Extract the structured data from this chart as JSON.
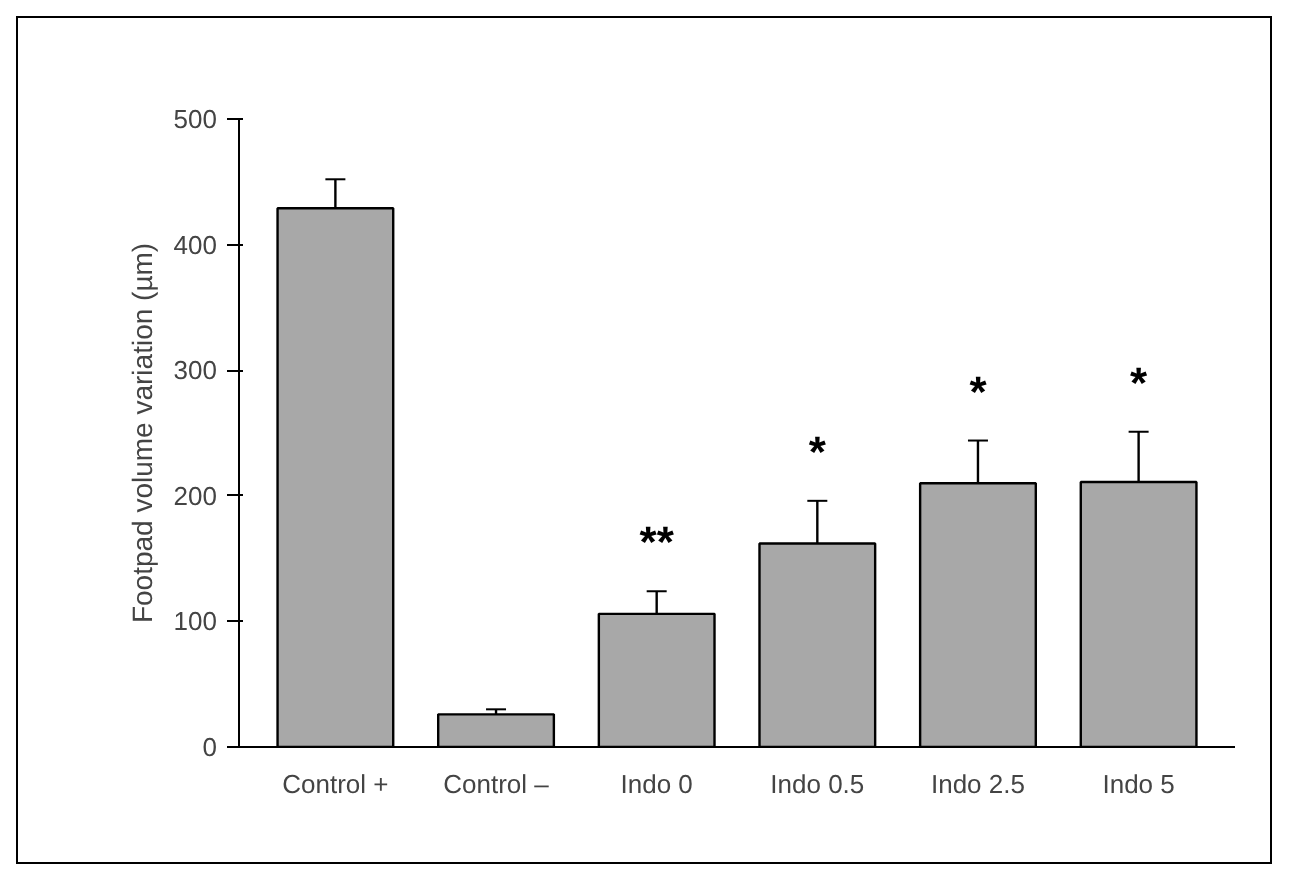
{
  "chart_data": {
    "type": "bar",
    "ylabel": "Footpad volume variation (µm)",
    "categories": [
      "Control +",
      "Control –",
      "Indo 0",
      "Indo 0.5",
      "Indo 2.5",
      "Indo 5"
    ],
    "values": [
      429,
      26,
      106,
      162,
      210,
      211
    ],
    "errors": [
      [
        429,
        452
      ],
      [
        26,
        30
      ],
      [
        106,
        124
      ],
      [
        162,
        196
      ],
      [
        210,
        244
      ],
      [
        211,
        251
      ]
    ],
    "color": "#a8a8a8",
    "ylim": [
      0,
      500
    ],
    "yticks": [
      0,
      100,
      200,
      300,
      400,
      500
    ],
    "grid": false,
    "legend": false,
    "annotations": [
      "**",
      "*",
      "*",
      "*"
    ]
  }
}
